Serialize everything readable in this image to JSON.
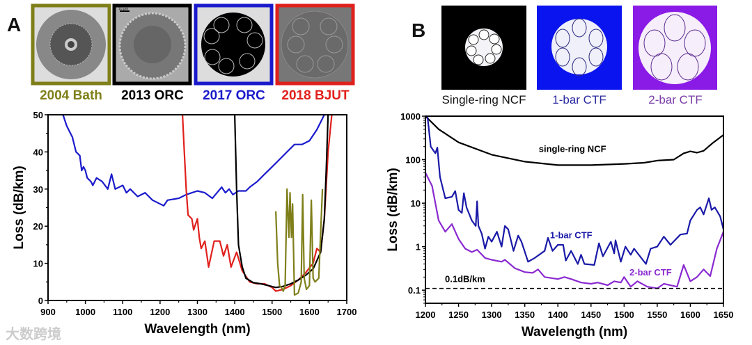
{
  "panel_a": {
    "letter": "A",
    "fibers": [
      {
        "label": "2004 Bath",
        "color": "#7f7f1a"
      },
      {
        "label": "2013 ORC",
        "color": "#000000"
      },
      {
        "label": "2017 ORC",
        "color": "#1a1acc"
      },
      {
        "label": "2018 BJUT",
        "color": "#e0201c"
      }
    ],
    "scale_bar": "10 μm"
  },
  "panel_b": {
    "letter": "B",
    "fibers": [
      {
        "label": "Single-ring NCF",
        "color": "#000000",
        "text_color": "#111111"
      },
      {
        "label": "1-bar CTF",
        "color": "#0a14ee",
        "text_color": "#2a2aa0"
      },
      {
        "label": "2-bar CTF",
        "color": "#8a1ae6",
        "text_color": "#7a40a8"
      }
    ]
  },
  "watermark": "大数跨境",
  "chart_data": [
    {
      "type": "line",
      "title": "",
      "xlabel": "Wavelength (nm)",
      "ylabel": "Loss (dB/km)",
      "xlim": [
        900,
        1700
      ],
      "ylim": [
        0,
        50
      ],
      "xticks": [
        900,
        1000,
        1100,
        1200,
        1300,
        1400,
        1500,
        1600,
        1700
      ],
      "yticks": [
        0,
        10,
        20,
        30,
        40,
        50
      ],
      "grid": false,
      "series": [
        {
          "name": "2017 ORC",
          "color": "#1a1acc",
          "points": [
            [
              940,
              50
            ],
            [
              950,
              47
            ],
            [
              960,
              45
            ],
            [
              965,
              44
            ],
            [
              975,
              40
            ],
            [
              985,
              39
            ],
            [
              990,
              35
            ],
            [
              995,
              36
            ],
            [
              1000,
              35
            ],
            [
              1005,
              33
            ],
            [
              1015,
              32
            ],
            [
              1020,
              31
            ],
            [
              1030,
              33
            ],
            [
              1045,
              32
            ],
            [
              1060,
              30
            ],
            [
              1070,
              34
            ],
            [
              1080,
              30
            ],
            [
              1100,
              31
            ],
            [
              1110,
              29
            ],
            [
              1120,
              30
            ],
            [
              1140,
              28
            ],
            [
              1160,
              29
            ],
            [
              1180,
              27
            ],
            [
              1200,
              26
            ],
            [
              1210,
              25.5
            ],
            [
              1220,
              27
            ],
            [
              1250,
              27.5
            ],
            [
              1270,
              28.5
            ],
            [
              1300,
              29.5
            ],
            [
              1320,
              29
            ],
            [
              1340,
              27.5
            ],
            [
              1365,
              30.5
            ],
            [
              1375,
              29
            ],
            [
              1385,
              30
            ],
            [
              1395,
              28.5
            ],
            [
              1410,
              29.5
            ],
            [
              1430,
              29.5
            ],
            [
              1440,
              30.5
            ],
            [
              1460,
              32
            ],
            [
              1480,
              34
            ],
            [
              1500,
              36
            ],
            [
              1520,
              38
            ],
            [
              1540,
              40
            ],
            [
              1560,
              42
            ],
            [
              1580,
              42
            ],
            [
              1600,
              43
            ],
            [
              1620,
              46
            ],
            [
              1640,
              50
            ]
          ]
        },
        {
          "name": "2018 BJUT",
          "color": "#e0201c",
          "points": [
            [
              1260,
              50
            ],
            [
              1265,
              40
            ],
            [
              1270,
              30
            ],
            [
              1275,
              23
            ],
            [
              1285,
              22
            ],
            [
              1290,
              19
            ],
            [
              1300,
              22
            ],
            [
              1305,
              17
            ],
            [
              1310,
              14
            ],
            [
              1320,
              16
            ],
            [
              1330,
              9
            ],
            [
              1345,
              16
            ],
            [
              1360,
              16
            ],
            [
              1370,
              12
            ],
            [
              1380,
              15
            ],
            [
              1390,
              9
            ],
            [
              1405,
              13
            ],
            [
              1420,
              8
            ],
            [
              1440,
              5
            ],
            [
              1460,
              4.5
            ],
            [
              1480,
              4.5
            ],
            [
              1500,
              3.5
            ],
            [
              1510,
              2.5
            ],
            [
              1530,
              3
            ],
            [
              1550,
              4
            ],
            [
              1570,
              5.5
            ],
            [
              1590,
              7.5
            ],
            [
              1610,
              10
            ],
            [
              1620,
              14
            ],
            [
              1630,
              13
            ],
            [
              1640,
              22
            ],
            [
              1650,
              40
            ],
            [
              1660,
              50
            ]
          ]
        },
        {
          "name": "2013 ORC",
          "color": "#000000",
          "points": [
            [
              1400,
              50
            ],
            [
              1405,
              30
            ],
            [
              1410,
              15
            ],
            [
              1420,
              9
            ],
            [
              1430,
              6
            ],
            [
              1450,
              4.8
            ],
            [
              1470,
              4.5
            ],
            [
              1490,
              4
            ],
            [
              1510,
              3.5
            ],
            [
              1530,
              3.8
            ],
            [
              1550,
              4.5
            ],
            [
              1570,
              5.5
            ],
            [
              1590,
              6.8
            ],
            [
              1610,
              8.5
            ],
            [
              1630,
              13
            ],
            [
              1640,
              22
            ],
            [
              1645,
              35
            ],
            [
              1650,
              50
            ]
          ]
        },
        {
          "name": "2004 Bath",
          "color": "#7f7f1a",
          "points": [
            [
              1510,
              24
            ],
            [
              1515,
              10
            ],
            [
              1520,
              4
            ],
            [
              1525,
              3.5
            ],
            [
              1530,
              2.5
            ],
            [
              1535,
              4
            ],
            [
              1540,
              30
            ],
            [
              1545,
              17
            ],
            [
              1548,
              29
            ],
            [
              1552,
              17
            ],
            [
              1555,
              26
            ],
            [
              1560,
              1.5
            ],
            [
              1570,
              2
            ],
            [
              1578,
              5
            ],
            [
              1582,
              28.5
            ],
            [
              1586,
              6
            ],
            [
              1592,
              3
            ],
            [
              1600,
              4
            ],
            [
              1605,
              27
            ],
            [
              1610,
              6
            ],
            [
              1615,
              5
            ],
            [
              1625,
              6
            ],
            [
              1635,
              30
            ]
          ]
        }
      ]
    },
    {
      "type": "line",
      "title": "",
      "xlabel": "Wavelength (nm)",
      "ylabel": "Loss (dB/km)",
      "xlim": [
        1200,
        1650
      ],
      "ylim": [
        0.05,
        1000
      ],
      "yscale": "log",
      "xticks": [
        1200,
        1250,
        1300,
        1350,
        1400,
        1450,
        1500,
        1550,
        1600,
        1650
      ],
      "yticks": [
        0.1,
        1,
        10,
        100,
        1000
      ],
      "ytick_labels": [
        "0.1",
        "1",
        "10",
        "100",
        "1000"
      ],
      "grid": false,
      "reference_line": {
        "value": 0.11,
        "label": "0.1dB/km"
      },
      "series": [
        {
          "name": "single-ring NCF",
          "color": "#000000",
          "points": [
            [
              1200,
              1000
            ],
            [
              1220,
              500
            ],
            [
              1250,
              250
            ],
            [
              1300,
              130
            ],
            [
              1350,
              90
            ],
            [
              1400,
              75
            ],
            [
              1450,
              75
            ],
            [
              1500,
              80
            ],
            [
              1530,
              85
            ],
            [
              1550,
              95
            ],
            [
              1575,
              100
            ],
            [
              1590,
              140
            ],
            [
              1600,
              155
            ],
            [
              1610,
              145
            ],
            [
              1620,
              160
            ],
            [
              1635,
              250
            ],
            [
              1650,
              370
            ]
          ]
        },
        {
          "name": "1-bar CTF",
          "color": "#1a1aa8",
          "points": [
            [
              1203,
              1000
            ],
            [
              1208,
              200
            ],
            [
              1215,
              140
            ],
            [
              1218,
              190
            ],
            [
              1222,
              40
            ],
            [
              1230,
              13
            ],
            [
              1240,
              14
            ],
            [
              1245,
              19
            ],
            [
              1250,
              7
            ],
            [
              1255,
              6
            ],
            [
              1258,
              17
            ],
            [
              1262,
              8
            ],
            [
              1270,
              4
            ],
            [
              1276,
              3
            ],
            [
              1278,
              11
            ],
            [
              1280,
              3
            ],
            [
              1285,
              2
            ],
            [
              1290,
              0.9
            ],
            [
              1295,
              1.7
            ],
            [
              1300,
              1.3
            ],
            [
              1308,
              2.2
            ],
            [
              1315,
              1
            ],
            [
              1320,
              3
            ],
            [
              1325,
              2.5
            ],
            [
              1333,
              0.8
            ],
            [
              1340,
              1.8
            ],
            [
              1345,
              1.3
            ],
            [
              1355,
              0.45
            ],
            [
              1365,
              0.55
            ],
            [
              1380,
              0.8
            ],
            [
              1385,
              1.6
            ],
            [
              1392,
              0.8
            ],
            [
              1400,
              1.1
            ],
            [
              1408,
              1.1
            ],
            [
              1412,
              0.48
            ],
            [
              1420,
              0.8
            ],
            [
              1430,
              0.4
            ],
            [
              1435,
              0.65
            ],
            [
              1440,
              0.4
            ],
            [
              1455,
              0.38
            ],
            [
              1462,
              1.2
            ],
            [
              1468,
              0.6
            ],
            [
              1480,
              1.3
            ],
            [
              1485,
              0.7
            ],
            [
              1487,
              1.4
            ],
            [
              1495,
              0.45
            ],
            [
              1502,
              1
            ],
            [
              1510,
              0.65
            ],
            [
              1515,
              0.9
            ],
            [
              1533,
              0.4
            ],
            [
              1540,
              0.9
            ],
            [
              1550,
              1
            ],
            [
              1560,
              1.7
            ],
            [
              1570,
              1.1
            ],
            [
              1585,
              1.9
            ],
            [
              1595,
              2
            ],
            [
              1600,
              4
            ],
            [
              1610,
              7
            ],
            [
              1615,
              8
            ],
            [
              1620,
              5.5
            ],
            [
              1628,
              13
            ],
            [
              1632,
              7
            ],
            [
              1637,
              8
            ],
            [
              1645,
              5
            ],
            [
              1650,
              2.5
            ]
          ]
        },
        {
          "name": "2-bar CTF",
          "color": "#8a2ad0",
          "points": [
            [
              1200,
              50
            ],
            [
              1210,
              25
            ],
            [
              1220,
              4
            ],
            [
              1230,
              2.2
            ],
            [
              1240,
              3.3
            ],
            [
              1250,
              1.5
            ],
            [
              1260,
              0.9
            ],
            [
              1270,
              0.75
            ],
            [
              1278,
              0.85
            ],
            [
              1290,
              0.55
            ],
            [
              1300,
              0.5
            ],
            [
              1315,
              0.45
            ],
            [
              1320,
              0.5
            ],
            [
              1335,
              0.32
            ],
            [
              1350,
              0.26
            ],
            [
              1362,
              0.25
            ],
            [
              1370,
              0.3
            ],
            [
              1380,
              0.2
            ],
            [
              1400,
              0.18
            ],
            [
              1410,
              0.2
            ],
            [
              1420,
              0.18
            ],
            [
              1435,
              0.15
            ],
            [
              1450,
              0.14
            ],
            [
              1460,
              0.15
            ],
            [
              1475,
              0.13
            ],
            [
              1485,
              0.16
            ],
            [
              1495,
              0.15
            ],
            [
              1500,
              0.2
            ],
            [
              1510,
              0.12
            ],
            [
              1520,
              0.16
            ],
            [
              1535,
              0.12
            ],
            [
              1550,
              0.11
            ],
            [
              1560,
              0.14
            ],
            [
              1580,
              0.12
            ],
            [
              1590,
              0.38
            ],
            [
              1600,
              0.16
            ],
            [
              1610,
              0.2
            ],
            [
              1620,
              0.3
            ],
            [
              1630,
              0.21
            ],
            [
              1640,
              0.9
            ],
            [
              1650,
              2.2
            ]
          ]
        }
      ]
    }
  ]
}
